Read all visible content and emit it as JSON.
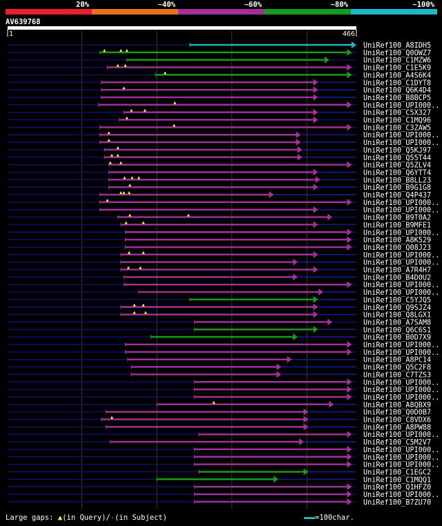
{
  "chart_data": {
    "type": "alignment-overview",
    "query_id": "AV639768",
    "query_length": 466,
    "range_start": "1",
    "range_end": "466",
    "identity_legend": [
      {
        "label": "20%",
        "color": "#e8202a"
      },
      {
        "label": "~40%",
        "color": "#e8701a"
      },
      {
        "label": "~60%",
        "color": "#a0309a"
      },
      {
        "label": "~80%",
        "color": "#1a9a1a"
      },
      {
        "label": "~100%",
        "color": "#20b8c8"
      }
    ],
    "hits": [
      {
        "name": "UniRef100_A8IDH5",
        "start": 244,
        "end": 466,
        "color": "#20b8c8",
        "gaps": [],
        "overhang": false
      },
      {
        "name": "UniRef100_Q0OWZ7",
        "start": 124,
        "end": 460,
        "color": "#1a9a1a",
        "gaps": [
          130,
          152,
          160
        ],
        "overhang": false
      },
      {
        "name": "UniRef100_C1MZW6",
        "start": 160,
        "end": 430,
        "color": "#1a9a1a",
        "gaps": [],
        "overhang": false
      },
      {
        "name": "UniRef100_C1E5K9",
        "start": 134,
        "end": 460,
        "color": "#a0309a",
        "gaps": [
          148,
          158
        ],
        "overhang": false
      },
      {
        "name": "UniRef100_A4S6K4",
        "start": 198,
        "end": 460,
        "color": "#1a9a1a",
        "gaps": [
          211
        ],
        "overhang": false
      },
      {
        "name": "UniRef100_C1DYT8",
        "start": 126,
        "end": 415,
        "color": "#a0309a",
        "gaps": [],
        "overhang": true
      },
      {
        "name": "UniRef100_Q6K4D4",
        "start": 126,
        "end": 415,
        "color": "#a0309a",
        "gaps": [
          156
        ],
        "overhang": true
      },
      {
        "name": "UniRef100_B8BCP5",
        "start": 126,
        "end": 415,
        "color": "#a0309a",
        "gaps": [],
        "overhang": true
      },
      {
        "name": "UniRef100_UPI000..",
        "start": 122,
        "end": 460,
        "color": "#a0309a",
        "gaps": [
          224
        ],
        "overhang": false
      },
      {
        "name": "UniRef100_C5X327",
        "start": 156,
        "end": 415,
        "color": "#a0309a",
        "gaps": [
          166,
          184
        ],
        "overhang": true
      },
      {
        "name": "UniRef100_C1MQ96",
        "start": 150,
        "end": 415,
        "color": "#a0309a",
        "gaps": [
          160
        ],
        "overhang": false
      },
      {
        "name": "UniRef100_C3ZAW5",
        "start": 124,
        "end": 460,
        "color": "#a0309a",
        "gaps": [
          223
        ],
        "overhang": false
      },
      {
        "name": "UniRef100_UPI000..",
        "start": 124,
        "end": 392,
        "color": "#a0309a",
        "gaps": [
          136
        ],
        "overhang": true
      },
      {
        "name": "UniRef100_UPI000..",
        "start": 124,
        "end": 392,
        "color": "#a0309a",
        "gaps": [
          136
        ],
        "overhang": true
      },
      {
        "name": "UniRef100_Q5KJ97",
        "start": 130,
        "end": 394,
        "color": "#a0309a",
        "gaps": [
          148
        ],
        "overhang": true
      },
      {
        "name": "UniRef100_Q55T44",
        "start": 130,
        "end": 394,
        "color": "#a0309a",
        "gaps": [
          140,
          148
        ],
        "overhang": true
      },
      {
        "name": "UniRef100_Q5ZLV4",
        "start": 136,
        "end": 460,
        "color": "#a0309a",
        "gaps": [
          138,
          152
        ],
        "overhang": false
      },
      {
        "name": "UniRef100_Q6YTT4",
        "start": 136,
        "end": 415,
        "color": "#a0309a",
        "gaps": [],
        "overhang": true
      },
      {
        "name": "UniRef100_B8LL23",
        "start": 136,
        "end": 418,
        "color": "#a0309a",
        "gaps": [
          157,
          167,
          176
        ],
        "overhang": true
      },
      {
        "name": "UniRef100_B9G1G8",
        "start": 136,
        "end": 415,
        "color": "#a0309a",
        "gaps": [
          164
        ],
        "overhang": true
      },
      {
        "name": "UniRef100_Q4P437",
        "start": 124,
        "end": 356,
        "color": "#a0309a",
        "gaps": [
          152,
          156,
          163
        ],
        "overhang": true
      },
      {
        "name": "UniRef100_UPI000..",
        "start": 124,
        "end": 460,
        "color": "#a0309a",
        "gaps": [
          134
        ],
        "overhang": false
      },
      {
        "name": "UniRef100_UPI000..",
        "start": 124,
        "end": 415,
        "color": "#a0309a",
        "gaps": [],
        "overhang": true
      },
      {
        "name": "UniRef100_B9T0A2",
        "start": 148,
        "end": 434,
        "color": "#a0309a",
        "gaps": [
          164,
          242
        ],
        "overhang": false
      },
      {
        "name": "UniRef100_B9MFE1",
        "start": 152,
        "end": 415,
        "color": "#a0309a",
        "gaps": [
          159,
          182
        ],
        "overhang": true
      },
      {
        "name": "UniRef100_UPI000..",
        "start": 158,
        "end": 460,
        "color": "#a0309a",
        "gaps": [],
        "overhang": false
      },
      {
        "name": "UniRef100_A8K529",
        "start": 158,
        "end": 460,
        "color": "#a0309a",
        "gaps": [],
        "overhang": false
      },
      {
        "name": "UniRef100_Q08J23",
        "start": 158,
        "end": 460,
        "color": "#a0309a",
        "gaps": [],
        "overhang": false
      },
      {
        "name": "UniRef100_UPI000..",
        "start": 152,
        "end": 415,
        "color": "#a0309a",
        "gaps": [
          163,
          182
        ],
        "overhang": true
      },
      {
        "name": "UniRef100_UPI000..",
        "start": 152,
        "end": 388,
        "color": "#a0309a",
        "gaps": [],
        "overhang": true
      },
      {
        "name": "UniRef100_A7R4H7",
        "start": 152,
        "end": 415,
        "color": "#a0309a",
        "gaps": [
          162,
          178
        ],
        "overhang": true
      },
      {
        "name": "UniRef100_B4D0U2",
        "start": 156,
        "end": 388,
        "color": "#a0309a",
        "gaps": [],
        "overhang": true
      },
      {
        "name": "UniRef100_UPI000..",
        "start": 156,
        "end": 460,
        "color": "#a0309a",
        "gaps": [],
        "overhang": false
      },
      {
        "name": "UniRef100_UPI000..",
        "start": 176,
        "end": 422,
        "color": "#a0309a",
        "gaps": [],
        "overhang": true
      },
      {
        "name": "UniRef100_C5YJQ5",
        "start": 244,
        "end": 415,
        "color": "#1a9a1a",
        "gaps": [],
        "overhang": true
      },
      {
        "name": "UniRef100_Q9SJZ4",
        "start": 152,
        "end": 415,
        "color": "#a0309a",
        "gaps": [
          170,
          182
        ],
        "overhang": true
      },
      {
        "name": "UniRef100_Q8LGX1",
        "start": 152,
        "end": 415,
        "color": "#a0309a",
        "gaps": [
          170,
          185
        ],
        "overhang": true
      },
      {
        "name": "UniRef100_A7SAM8",
        "start": 250,
        "end": 434,
        "color": "#a0309a",
        "gaps": [],
        "overhang": false
      },
      {
        "name": "UniRef100_Q6C6S1",
        "start": 250,
        "end": 415,
        "color": "#1a9a1a",
        "gaps": [],
        "overhang": true
      },
      {
        "name": "UniRef100_B0D7X9",
        "start": 192,
        "end": 388,
        "color": "#1a9a1a",
        "gaps": [],
        "overhang": true
      },
      {
        "name": "UniRef100_UPI000..",
        "start": 158,
        "end": 460,
        "color": "#a0309a",
        "gaps": [],
        "overhang": false
      },
      {
        "name": "UniRef100_UPI000..",
        "start": 158,
        "end": 460,
        "color": "#a0309a",
        "gaps": [],
        "overhang": false
      },
      {
        "name": "UniRef100_A8PC14",
        "start": 161,
        "end": 380,
        "color": "#a0309a",
        "gaps": [],
        "overhang": true
      },
      {
        "name": "UniRef100_Q5C2F8",
        "start": 166,
        "end": 366,
        "color": "#a0309a",
        "gaps": [],
        "overhang": true
      },
      {
        "name": "UniRef100_C7TZS3",
        "start": 166,
        "end": 366,
        "color": "#a0309a",
        "gaps": [],
        "overhang": true
      },
      {
        "name": "UniRef100_UPI000..",
        "start": 250,
        "end": 460,
        "color": "#a0309a",
        "gaps": [],
        "overhang": false
      },
      {
        "name": "UniRef100_UPI000..",
        "start": 250,
        "end": 460,
        "color": "#a0309a",
        "gaps": [],
        "overhang": false
      },
      {
        "name": "UniRef100_UPI000..",
        "start": 250,
        "end": 460,
        "color": "#a0309a",
        "gaps": [],
        "overhang": false
      },
      {
        "name": "UniRef100_A8QBX9",
        "start": 200,
        "end": 436,
        "color": "#a0309a",
        "gaps": [
          276
        ],
        "overhang": true
      },
      {
        "name": "UniRef100_Q0D0B7",
        "start": 132,
        "end": 402,
        "color": "#a0309a",
        "gaps": [],
        "overhang": true
      },
      {
        "name": "UniRef100_C8VDX6",
        "start": 126,
        "end": 402,
        "color": "#a0309a",
        "gaps": [
          140
        ],
        "overhang": true
      },
      {
        "name": "UniRef100_A8PW88",
        "start": 132,
        "end": 402,
        "color": "#a0309a",
        "gaps": [],
        "overhang": true
      },
      {
        "name": "UniRef100_UPI000..",
        "start": 256,
        "end": 460,
        "color": "#a0309a",
        "gaps": [],
        "overhang": false
      },
      {
        "name": "UniRef100_C5M2V7",
        "start": 138,
        "end": 396,
        "color": "#a0309a",
        "gaps": [],
        "overhang": true
      },
      {
        "name": "UniRef100_UPI000..",
        "start": 250,
        "end": 460,
        "color": "#a0309a",
        "gaps": [],
        "overhang": false
      },
      {
        "name": "UniRef100_UPI000..",
        "start": 250,
        "end": 460,
        "color": "#a0309a",
        "gaps": [],
        "overhang": false
      },
      {
        "name": "UniRef100_UPI000..",
        "start": 250,
        "end": 460,
        "color": "#a0309a",
        "gaps": [],
        "overhang": false
      },
      {
        "name": "UniRef100_C1EGC2",
        "start": 256,
        "end": 402,
        "color": "#1a9a1a",
        "gaps": [],
        "overhang": true
      },
      {
        "name": "UniRef100_C1MQQ1",
        "start": 200,
        "end": 362,
        "color": "#1a9a1a",
        "gaps": [],
        "overhang": true
      },
      {
        "name": "UniRef100_Q1HFZ0",
        "start": 250,
        "end": 460,
        "color": "#a0309a",
        "gaps": [],
        "overhang": false
      },
      {
        "name": "UniRef100_UPI000..",
        "start": 250,
        "end": 460,
        "color": "#a0309a",
        "gaps": [],
        "overhang": false
      },
      {
        "name": "UniRef100_B7ZU70",
        "start": 250,
        "end": 460,
        "color": "#a0309a",
        "gaps": [],
        "overhang": false
      }
    ],
    "footer_gaps_prefix": "Large gaps: ",
    "footer_gaps_query": "(in Query)/",
    "footer_gaps_subject": "(in Subject)",
    "footer_scale": "=100char."
  }
}
